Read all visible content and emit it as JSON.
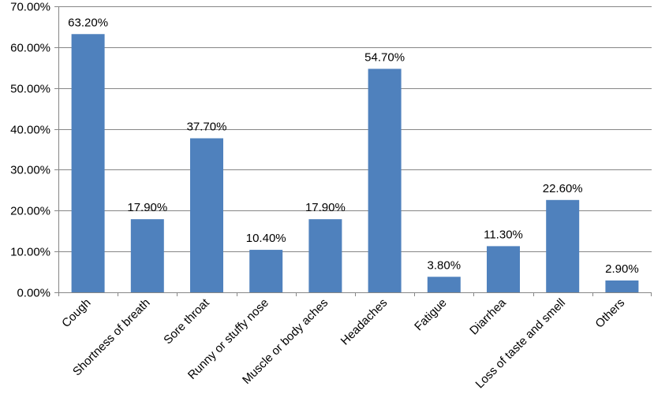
{
  "chart_data": {
    "type": "bar",
    "categories": [
      "Cough",
      "Shortness of breath",
      "Sore throat",
      "Runny or stuffy nose",
      "Muscle or body aches",
      "Headaches",
      "Fatigue",
      "Diarrhea",
      "Loss of taste and smell",
      "Others"
    ],
    "values": [
      63.2,
      17.9,
      37.7,
      10.4,
      17.9,
      54.7,
      3.8,
      11.3,
      22.6,
      2.9
    ],
    "data_labels": [
      "63.20%",
      "17.90%",
      "37.70%",
      "10.40%",
      "17.90%",
      "54.70%",
      "3.80%",
      "11.30%",
      "22.60%",
      "2.90%"
    ],
    "y_ticks": [
      "0.00%",
      "10.00%",
      "20.00%",
      "30.00%",
      "40.00%",
      "50.00%",
      "60.00%",
      "70.00%"
    ],
    "ylim": [
      0,
      70
    ],
    "grid": true,
    "bar_color": "#4f81bd",
    "grid_color": "#868686"
  }
}
